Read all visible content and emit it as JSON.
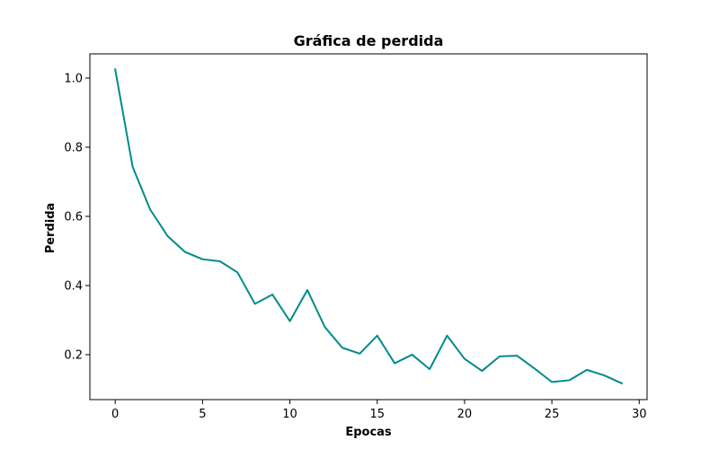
{
  "chart_data": {
    "type": "line",
    "title": "Gráfica de perdida",
    "xlabel": "Epocas",
    "ylabel": "Perdida",
    "xlim": [
      -1.45,
      30.45
    ],
    "ylim": [
      0.07,
      1.07
    ],
    "xticks": [
      0,
      5,
      10,
      15,
      20,
      25,
      30
    ],
    "yticks": [
      0.2,
      0.4,
      0.6,
      0.8,
      1.0
    ],
    "xtick_labels": [
      "0",
      "5",
      "10",
      "15",
      "20",
      "25",
      "30"
    ],
    "ytick_labels": [
      "0.2",
      "0.4",
      "0.6",
      "0.8",
      "1.0"
    ],
    "grid": false,
    "series": [
      {
        "color": "#008b8b",
        "x": [
          0,
          1,
          2,
          3,
          4,
          5,
          6,
          7,
          8,
          9,
          10,
          11,
          12,
          13,
          14,
          15,
          16,
          17,
          18,
          19,
          20,
          21,
          22,
          23,
          24,
          25,
          26,
          27,
          28,
          29
        ],
        "y": [
          1.025,
          0.743,
          0.62,
          0.543,
          0.497,
          0.476,
          0.47,
          0.438,
          0.347,
          0.374,
          0.297,
          0.387,
          0.28,
          0.22,
          0.203,
          0.255,
          0.175,
          0.2,
          0.158,
          0.255,
          0.188,
          0.153,
          0.195,
          0.197,
          0.16,
          0.121,
          0.126,
          0.156,
          0.14,
          0.117
        ]
      }
    ]
  }
}
